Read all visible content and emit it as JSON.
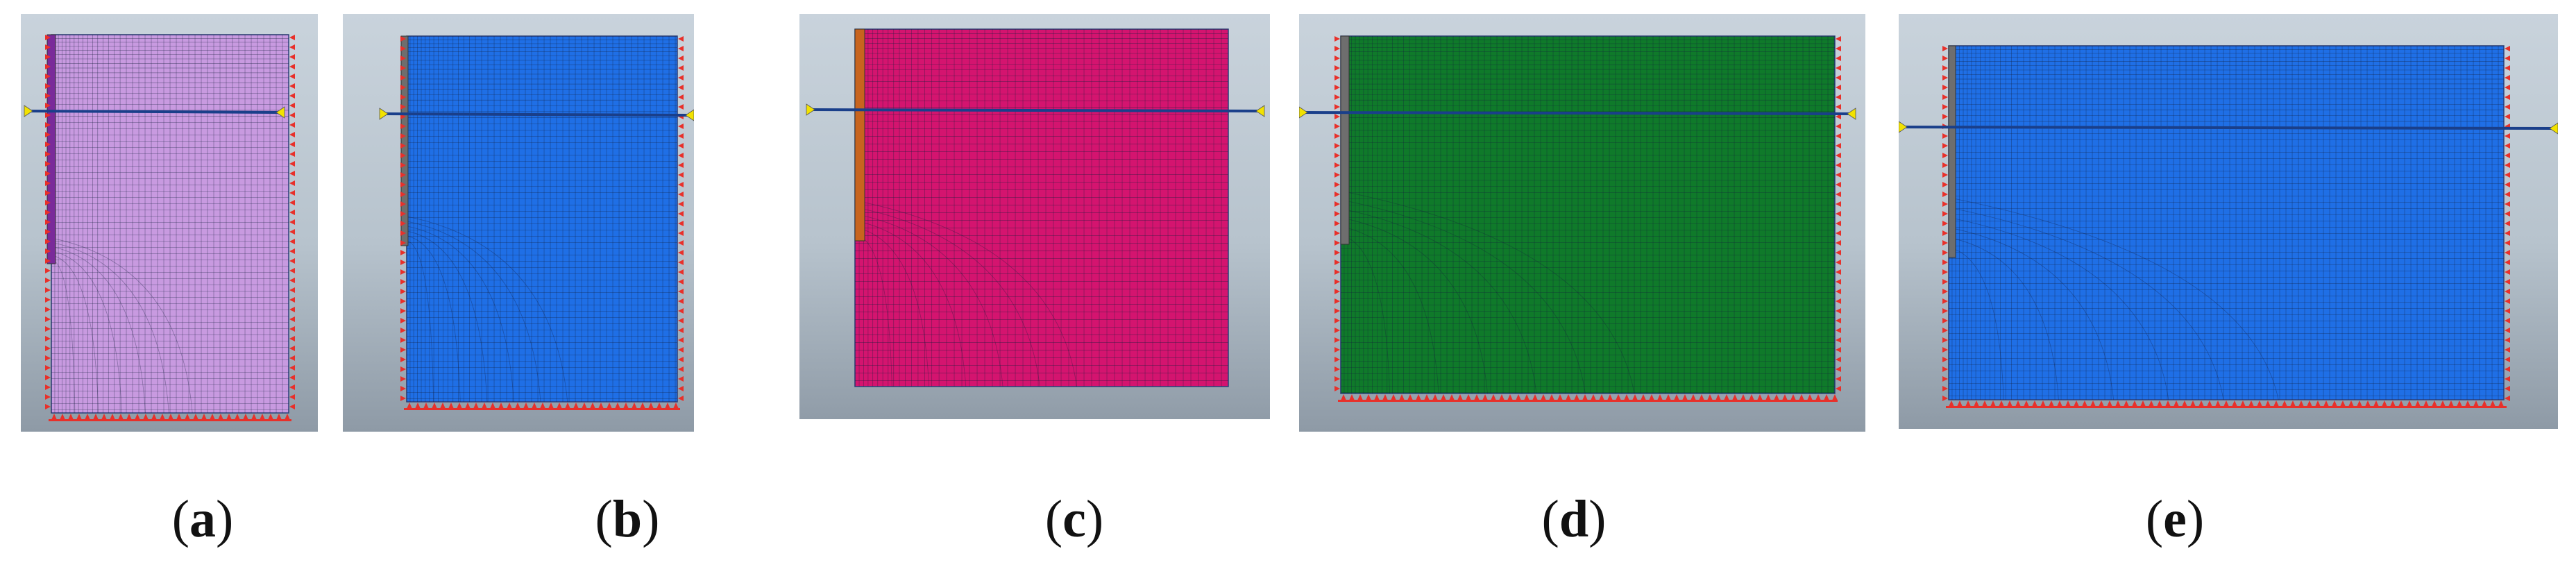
{
  "panels": [
    {
      "id": "a",
      "caption_open": "(",
      "caption_letter": "a",
      "caption_close": ")",
      "mesh_color": "#c89ae0",
      "wall_color": "#7a2a9a"
    },
    {
      "id": "b",
      "caption_open": "(",
      "caption_letter": "b",
      "caption_close": ")",
      "mesh_color": "#1f6fe6",
      "wall_color": "#6e6e6e"
    },
    {
      "id": "c",
      "caption_open": "(",
      "caption_letter": "c",
      "caption_close": ")",
      "mesh_color": "#d4146f",
      "wall_color": "#c8641e"
    },
    {
      "id": "d",
      "caption_open": "(",
      "caption_letter": "d",
      "caption_close": ")",
      "mesh_color": "#0f7a2a",
      "wall_color": "#6e6e6e"
    },
    {
      "id": "e",
      "caption_open": "(",
      "caption_letter": "e",
      "caption_close": ")",
      "mesh_color": "#1f6fe6",
      "wall_color": "#6e6e6e"
    }
  ],
  "colors": {
    "background_top": "#c9d3dc",
    "background_bottom": "#8e9aa6",
    "support": "#e8302a",
    "anchor": "#1a3f8a",
    "anchor_end": "#f2e200"
  }
}
